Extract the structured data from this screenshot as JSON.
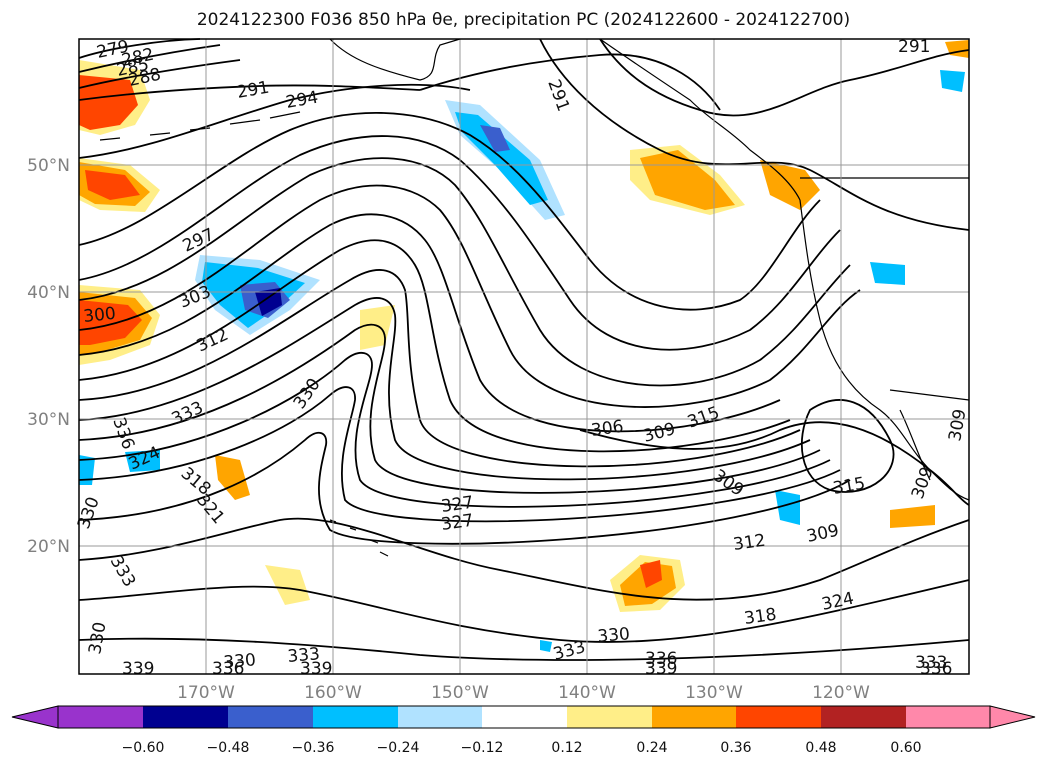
{
  "title": "2024122300 F036 850 hPa θe, precipitation PC (2024122600 - 2024122700)",
  "latitude_labels": [
    "50°N",
    "40°N",
    "30°N",
    "20°N"
  ],
  "longitude_labels": [
    "170°W",
    "160°W",
    "150°W",
    "140°W",
    "130°W",
    "120°W"
  ],
  "contour_labels": [
    "279",
    "282",
    "285",
    "288",
    "291",
    "294",
    "291",
    "291",
    "297",
    "300",
    "303",
    "312",
    "333",
    "330",
    "336",
    "324",
    "318",
    "321",
    "330",
    "333",
    "327",
    "327",
    "306",
    "309",
    "315",
    "309",
    "315",
    "312",
    "309",
    "324",
    "318",
    "330",
    "333",
    "336",
    "339",
    "330",
    "333",
    "339",
    "336",
    "330",
    "339",
    "333",
    "336",
    "309",
    "309"
  ],
  "colorbar": {
    "tick_labels": [
      "−0.60",
      "−0.48",
      "−0.36",
      "−0.24",
      "−0.12",
      "0.12",
      "0.24",
      "0.36",
      "0.48",
      "0.60"
    ],
    "colors": [
      "#9933cc",
      "#000090",
      "#3a5fcd",
      "#00bfff",
      "#b0e2ff",
      "#ffffff",
      "#ffee88",
      "#ffa500",
      "#ff4500",
      "#b22222",
      "#ff88aa"
    ]
  }
}
